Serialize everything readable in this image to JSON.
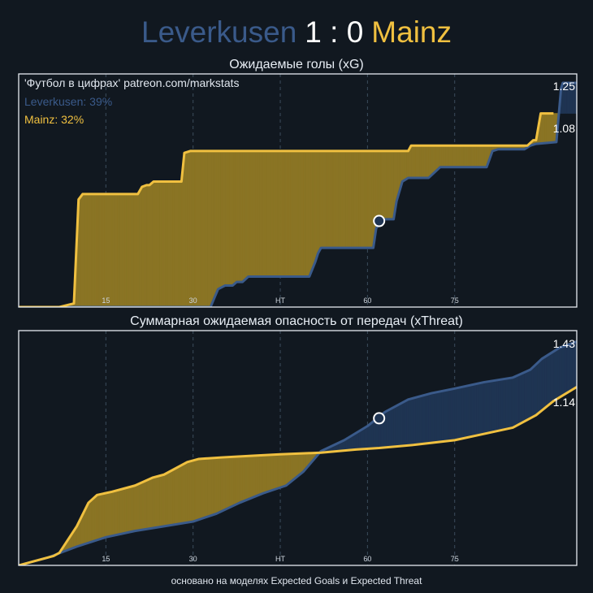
{
  "header": {
    "home": "Leverkusen",
    "score": "1 : 0",
    "away": "Mainz"
  },
  "colors": {
    "home": "#3a5a8a",
    "away": "#f0c040",
    "away_fill": "#8a7424",
    "home_fill": "#1f3452",
    "background": "#111820"
  },
  "chart_data": [
    {
      "type": "area",
      "title": "Ожидаемые голы (xG)",
      "source_note": "'Футбол в цифрах' patreon.com/markstats",
      "legend": [
        "Leverkusen: 39%",
        "Mainz: 32%"
      ],
      "xlim": [
        0,
        96
      ],
      "ylim": [
        0,
        1.3
      ],
      "x_ticks": [
        {
          "x": 15,
          "label": "15"
        },
        {
          "x": 30,
          "label": "30"
        },
        {
          "x": 45,
          "label": "HT"
        },
        {
          "x": 60,
          "label": "60"
        },
        {
          "x": 75,
          "label": "75"
        }
      ],
      "end_labels": [
        "1.25",
        "1.08"
      ],
      "event_marker": {
        "minute": 62,
        "value": 0.48
      },
      "series": [
        {
          "name": "Leverkusen",
          "final": 1.25,
          "points": [
            [
              0,
              0
            ],
            [
              33,
              0
            ],
            [
              34.3,
              0.1
            ],
            [
              35.5,
              0.12
            ],
            [
              36.8,
              0.12
            ],
            [
              37.5,
              0.14
            ],
            [
              38.5,
              0.14
            ],
            [
              39.5,
              0.17
            ],
            [
              50,
              0.17
            ],
            [
              51,
              0.25
            ],
            [
              51.5,
              0.3
            ],
            [
              52,
              0.33
            ],
            [
              61,
              0.33
            ],
            [
              61.5,
              0.44
            ],
            [
              62,
              0.46
            ],
            [
              62.5,
              0.48
            ],
            [
              63,
              0.49
            ],
            [
              64.5,
              0.49
            ],
            [
              65,
              0.59
            ],
            [
              66,
              0.7
            ],
            [
              67,
              0.72
            ],
            [
              70.5,
              0.72
            ],
            [
              71.5,
              0.75
            ],
            [
              72.5,
              0.78
            ],
            [
              80.5,
              0.78
            ],
            [
              81.5,
              0.87
            ],
            [
              82.5,
              0.88
            ],
            [
              87,
              0.88
            ],
            [
              88,
              0.9
            ],
            [
              89,
              0.91
            ],
            [
              92.5,
              0.92
            ],
            [
              93.3,
              1.22
            ],
            [
              93.6,
              1.25
            ],
            [
              96,
              1.25
            ]
          ]
        },
        {
          "name": "Mainz",
          "final": 1.08,
          "points": [
            [
              0,
              0
            ],
            [
              7,
              0
            ],
            [
              9.5,
              0.02
            ],
            [
              10.3,
              0.6
            ],
            [
              11,
              0.63
            ],
            [
              20.5,
              0.63
            ],
            [
              21.2,
              0.67
            ],
            [
              22,
              0.68
            ],
            [
              22.5,
              0.68
            ],
            [
              23.2,
              0.7
            ],
            [
              28,
              0.7
            ],
            [
              28.5,
              0.86
            ],
            [
              29.5,
              0.87
            ],
            [
              67,
              0.87
            ],
            [
              67.5,
              0.9
            ],
            [
              87.5,
              0.9
            ],
            [
              88.5,
              0.93
            ],
            [
              89,
              0.93
            ],
            [
              89.8,
              1.08
            ],
            [
              92,
              1.08
            ]
          ]
        }
      ]
    },
    {
      "type": "area",
      "title": "Суммарная ожидаемая опасность от передач (xThreat)",
      "xlim": [
        0,
        96
      ],
      "ylim": [
        0,
        1.5
      ],
      "x_ticks": [
        {
          "x": 15,
          "label": "15"
        },
        {
          "x": 30,
          "label": "30"
        },
        {
          "x": 45,
          "label": "HT"
        },
        {
          "x": 60,
          "label": "60"
        },
        {
          "x": 75,
          "label": "75"
        }
      ],
      "end_labels": [
        "1.43",
        "1.14"
      ],
      "event_marker": {
        "minute": 62,
        "value": 0.94
      },
      "series": [
        {
          "name": "Leverkusen",
          "final": 1.43,
          "points": [
            [
              0,
              0
            ],
            [
              5,
              0.05
            ],
            [
              10,
              0.12
            ],
            [
              15,
              0.18
            ],
            [
              20,
              0.22
            ],
            [
              25,
              0.25
            ],
            [
              30,
              0.28
            ],
            [
              34,
              0.33
            ],
            [
              38,
              0.4
            ],
            [
              42,
              0.46
            ],
            [
              46,
              0.51
            ],
            [
              49,
              0.6
            ],
            [
              52,
              0.73
            ],
            [
              56,
              0.8
            ],
            [
              60,
              0.89
            ],
            [
              63,
              0.98
            ],
            [
              67,
              1.06
            ],
            [
              71,
              1.1
            ],
            [
              75,
              1.13
            ],
            [
              80,
              1.17
            ],
            [
              85,
              1.2
            ],
            [
              88,
              1.25
            ],
            [
              90,
              1.32
            ],
            [
              93,
              1.39
            ],
            [
              96,
              1.43
            ]
          ]
        },
        {
          "name": "Mainz",
          "final": 1.14,
          "points": [
            [
              0,
              0
            ],
            [
              3,
              0.03
            ],
            [
              6,
              0.06
            ],
            [
              7,
              0.08
            ],
            [
              10,
              0.25
            ],
            [
              12,
              0.4
            ],
            [
              13.5,
              0.45
            ],
            [
              16,
              0.47
            ],
            [
              20,
              0.51
            ],
            [
              23,
              0.56
            ],
            [
              25,
              0.58
            ],
            [
              29,
              0.66
            ],
            [
              31,
              0.68
            ],
            [
              35,
              0.69
            ],
            [
              40,
              0.7
            ],
            [
              45,
              0.71
            ],
            [
              52,
              0.72
            ],
            [
              58,
              0.74
            ],
            [
              62,
              0.75
            ],
            [
              68,
              0.77
            ],
            [
              75,
              0.8
            ],
            [
              80,
              0.84
            ],
            [
              85,
              0.88
            ],
            [
              89,
              0.96
            ],
            [
              92,
              1.05
            ],
            [
              96,
              1.14
            ]
          ]
        }
      ]
    }
  ],
  "footer": "основано на моделях Expected Goals и Expected Threat"
}
